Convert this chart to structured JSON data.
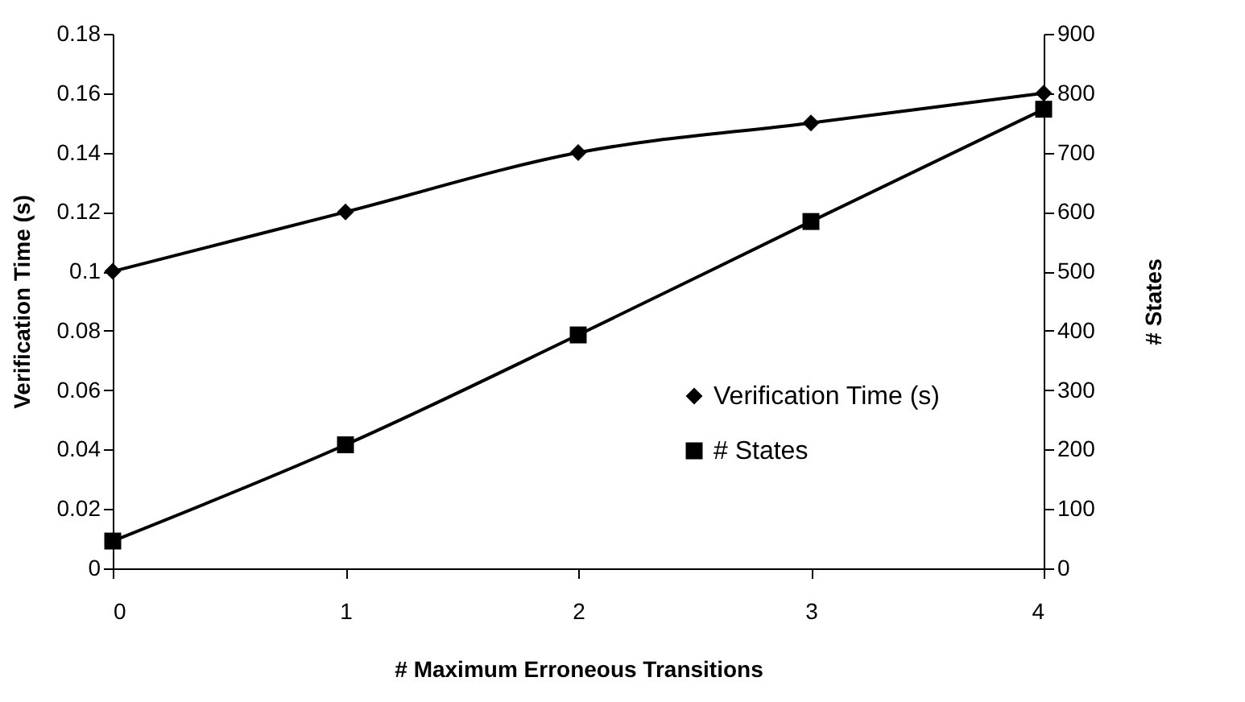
{
  "chart_data": {
    "type": "line",
    "xlabel": "# Maximum Erroneous Transitions",
    "ylabel": "Verification Time (s)",
    "y2label": "# States",
    "x": [
      0,
      1,
      2,
      3,
      4
    ],
    "xlim": [
      0,
      4
    ],
    "xticks": [
      0,
      1,
      2,
      3,
      4
    ],
    "ylim": [
      0,
      0.18
    ],
    "yticks": [
      0,
      0.02,
      0.04,
      0.06,
      0.08,
      0.1,
      0.12,
      0.14,
      0.16,
      0.18
    ],
    "y2lim": [
      0,
      900
    ],
    "y2ticks": [
      0,
      100,
      200,
      300,
      400,
      500,
      600,
      700,
      800,
      900
    ],
    "series": [
      {
        "name": "Verification Time (s)",
        "color": "#000000",
        "marker": "diamond",
        "values": [
          0.1,
          0.12,
          0.14,
          0.15,
          0.16
        ]
      },
      {
        "name": "# States",
        "color": "#000000",
        "marker": "square",
        "axis": "y2",
        "values": [
          46,
          208,
          393,
          584,
          773
        ]
      }
    ],
    "legend": "bottom right",
    "grid": false,
    "line_style": "solid"
  }
}
